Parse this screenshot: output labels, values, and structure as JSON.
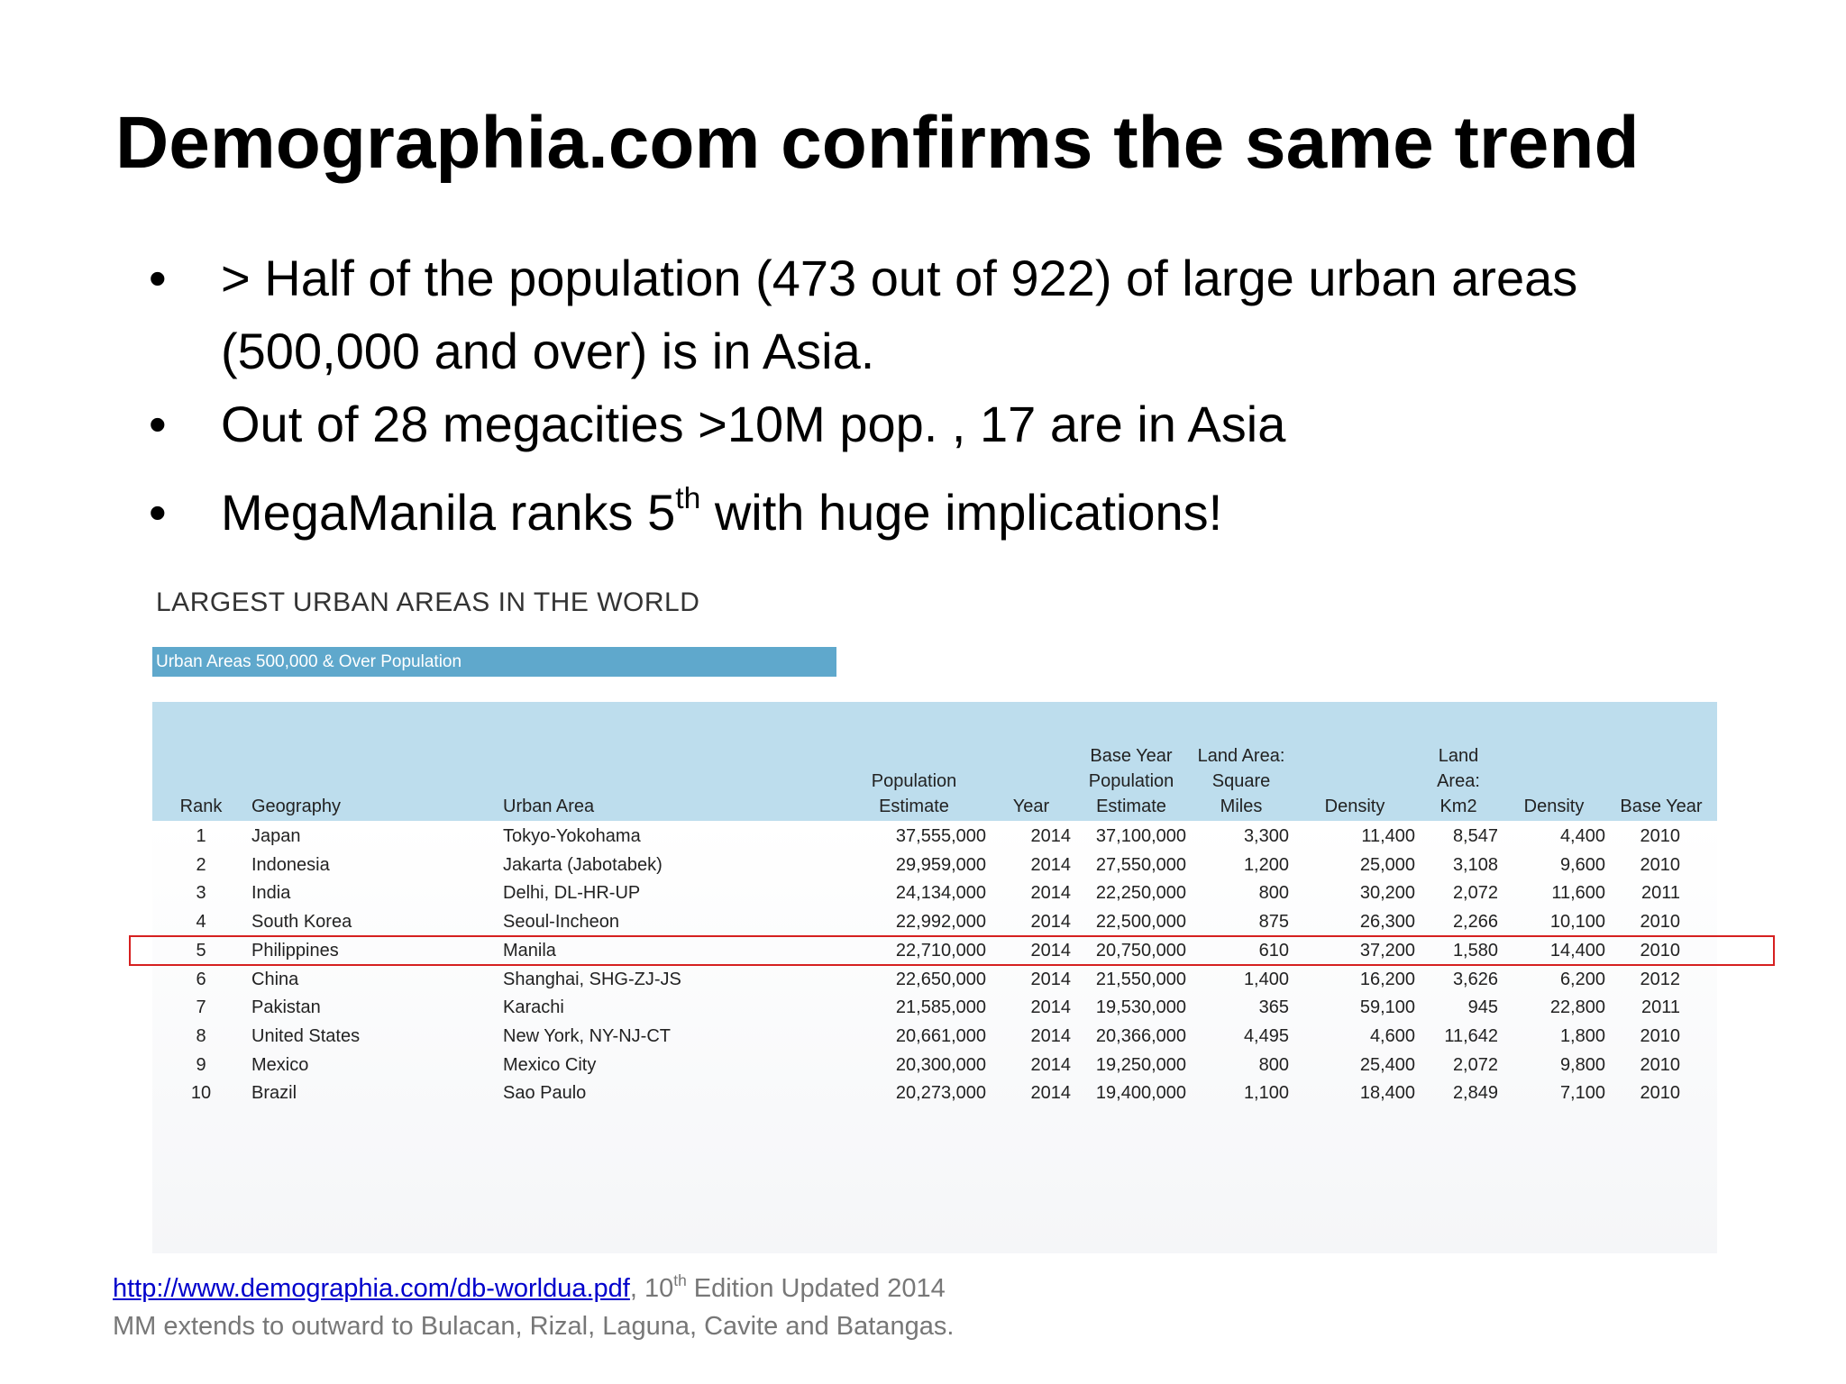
{
  "title": "Demographia.com confirms the same trend",
  "bullets": [
    {
      "text": "> Half of the population (473 out of 922) of large urban areas (500,000 and over) is in Asia."
    },
    {
      "text": "Out of 28 megacities >10M pop. , 17 are in Asia"
    },
    {
      "text": "MegaManila ranks 5",
      "sup": "th",
      "after": " with huge implications!"
    }
  ],
  "table_heading": "LARGEST URBAN AREAS IN THE WORLD",
  "table_subheading": "Urban Areas 500,000 & Over Population",
  "table": {
    "columns": [
      "Rank",
      "Geography",
      "Urban Area",
      "Population\nEstimate",
      "Year",
      "Base Year\nPopulation\nEstimate",
      "Land Area:\nSquare\nMiles",
      "Density",
      "Land\nArea:\nKm2",
      "Density",
      "Base Year"
    ],
    "highlighted_row": 4,
    "rows": [
      [
        "1",
        "Japan",
        "Tokyo-Yokohama",
        "37,555,000",
        "2014",
        "37,100,000",
        "3,300",
        "11,400",
        "8,547",
        "4,400",
        "2010"
      ],
      [
        "2",
        "Indonesia",
        "Jakarta (Jabotabek)",
        "29,959,000",
        "2014",
        "27,550,000",
        "1,200",
        "25,000",
        "3,108",
        "9,600",
        "2010"
      ],
      [
        "3",
        "India",
        "Delhi, DL-HR-UP",
        "24,134,000",
        "2014",
        "22,250,000",
        "800",
        "30,200",
        "2,072",
        "11,600",
        "2011"
      ],
      [
        "4",
        "South Korea",
        "Seoul-Incheon",
        "22,992,000",
        "2014",
        "22,500,000",
        "875",
        "26,300",
        "2,266",
        "10,100",
        "2010"
      ],
      [
        "5",
        "Philippines",
        "Manila",
        "22,710,000",
        "2014",
        "20,750,000",
        "610",
        "37,200",
        "1,580",
        "14,400",
        "2010"
      ],
      [
        "6",
        "China",
        "Shanghai, SHG-ZJ-JS",
        "22,650,000",
        "2014",
        "21,550,000",
        "1,400",
        "16,200",
        "3,626",
        "6,200",
        "2012"
      ],
      [
        "7",
        "Pakistan",
        "Karachi",
        "21,585,000",
        "2014",
        "19,530,000",
        "365",
        "59,100",
        "945",
        "22,800",
        "2011"
      ],
      [
        "8",
        "United States",
        "New York, NY-NJ-CT",
        "20,661,000",
        "2014",
        "20,366,000",
        "4,495",
        "4,600",
        "11,642",
        "1,800",
        "2010"
      ],
      [
        "9",
        "Mexico",
        "Mexico City",
        "20,300,000",
        "2014",
        "19,250,000",
        "800",
        "25,400",
        "2,072",
        "9,800",
        "2010"
      ],
      [
        "10",
        "Brazil",
        "Sao Paulo",
        "20,273,000",
        "2014",
        "19,400,000",
        "1,100",
        "18,400",
        "2,849",
        "7,100",
        "2010"
      ]
    ]
  },
  "footer": {
    "link": "http://www.demographia.com/db-worldua.pdf",
    "link_after": ", 10",
    "sup": "th",
    "after": " Edition Updated 2014",
    "note": "MM extends to outward to Bulacan, Rizal, Laguna, Cavite and Batangas."
  }
}
